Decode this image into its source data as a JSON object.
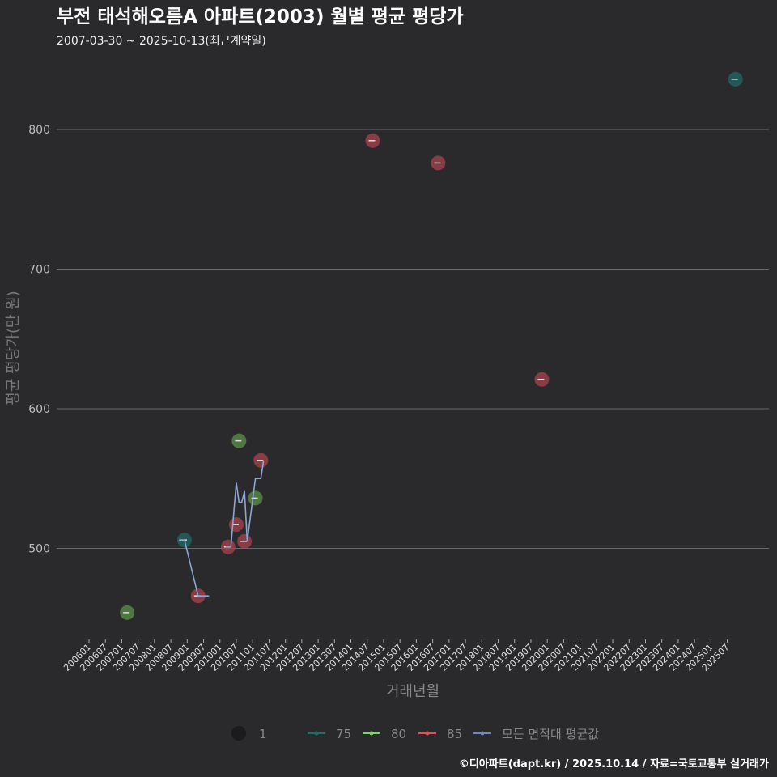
{
  "chart_data": {
    "type": "scatter",
    "title": "부전 태석해오름A 아파트(2003) 월별 평균 평당가",
    "subtitle": "2007-03-30 ~ 2025-10-13(최근계약일)",
    "xlabel": "거래년월",
    "ylabel": "평균 평당가(만 원)",
    "ylim": [
      437,
      845
    ],
    "yticks": [
      500,
      600,
      700,
      800
    ],
    "xticks": [
      "200601",
      "200607",
      "200701",
      "200707",
      "200801",
      "200807",
      "200901",
      "200907",
      "201001",
      "201007",
      "201101",
      "201107",
      "201201",
      "201207",
      "201301",
      "201307",
      "201401",
      "201407",
      "201501",
      "201507",
      "201601",
      "201607",
      "201701",
      "201707",
      "201801",
      "201807",
      "201901",
      "201907",
      "202001",
      "202007",
      "202101",
      "202107",
      "202201",
      "202207",
      "202301",
      "202307",
      "202401",
      "202407",
      "202501",
      "202507"
    ],
    "colors": {
      "75": "#1f6e6b",
      "80": "#5f9a4c",
      "85": "#b0454f",
      "avg": "#8aa6d6"
    },
    "series": [
      {
        "name": "75",
        "points": [
          [
            "200812",
            506
          ],
          [
            "202510",
            836
          ]
        ]
      },
      {
        "name": "80",
        "points": [
          [
            "200703",
            454
          ],
          [
            "201008",
            577
          ],
          [
            "201102",
            536
          ]
        ]
      },
      {
        "name": "85",
        "points": [
          [
            "200905",
            466
          ],
          [
            "201004",
            501
          ],
          [
            "201007",
            517
          ],
          [
            "201010",
            505
          ],
          [
            "201104",
            563
          ],
          [
            "201409",
            792
          ],
          [
            "201609",
            776
          ],
          [
            "201911",
            621
          ]
        ]
      }
    ],
    "average": {
      "name": "모든 면적대 평균값",
      "segments": [
        [
          [
            "200810",
            506
          ],
          [
            "200812",
            506
          ],
          [
            "200905",
            466
          ],
          [
            "200909",
            466
          ]
        ],
        [
          [
            "201003",
            501
          ],
          [
            "201005",
            501
          ],
          [
            "201007",
            547
          ],
          [
            "201008",
            533
          ],
          [
            "201009",
            533
          ],
          [
            "201010",
            541
          ],
          [
            "201011",
            505
          ],
          [
            "201102",
            550
          ],
          [
            "201104",
            550
          ],
          [
            "201105",
            563
          ]
        ]
      ]
    },
    "legend": {
      "size_label": "1",
      "items": [
        "75",
        "80",
        "85",
        "모든 면적대 평균값"
      ],
      "placement": "bottom"
    }
  },
  "footer": "©디아파트(dapt.kr) / 2025.10.14 / 자료=국토교통부 실거래가"
}
